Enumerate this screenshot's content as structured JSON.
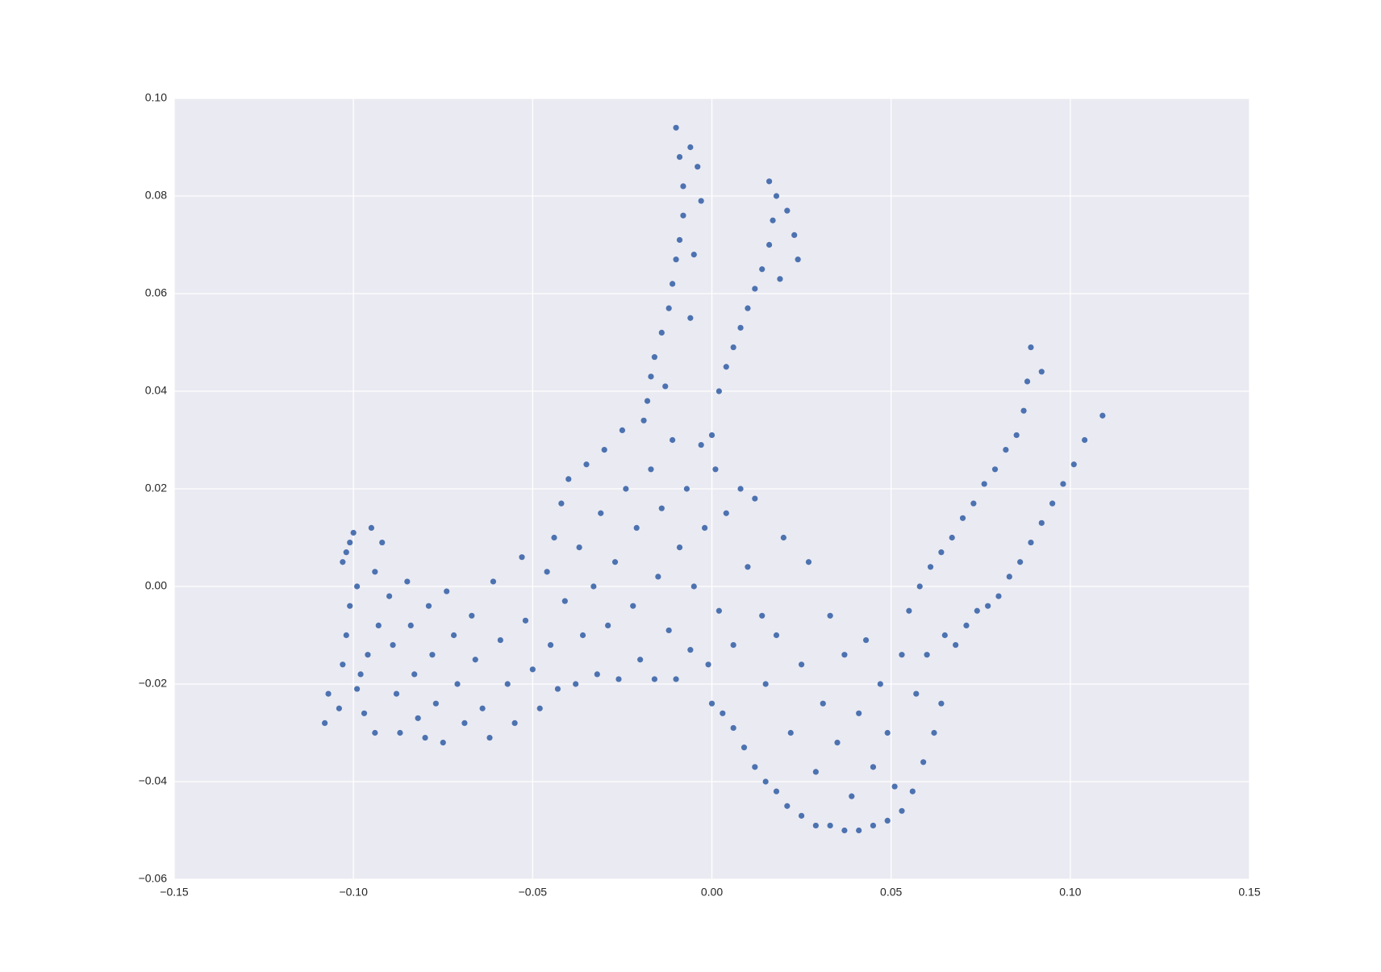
{
  "chart_data": {
    "type": "scatter",
    "color": "#4c72b0",
    "grid": true,
    "xlim": [
      -0.15,
      0.15
    ],
    "ylim": [
      -0.06,
      0.1
    ],
    "xticks": [
      {
        "value": -0.15,
        "label": "−0.15"
      },
      {
        "value": -0.1,
        "label": "−0.10"
      },
      {
        "value": -0.05,
        "label": "−0.05"
      },
      {
        "value": 0,
        "label": "0.00"
      },
      {
        "value": 0.05,
        "label": "0.05"
      },
      {
        "value": 0.1,
        "label": "0.10"
      },
      {
        "value": 0.15,
        "label": "0.15"
      }
    ],
    "yticks": [
      {
        "value": -0.06,
        "label": "−0.06"
      },
      {
        "value": -0.04,
        "label": "−0.04"
      },
      {
        "value": -0.02,
        "label": "−0.02"
      },
      {
        "value": 0,
        "label": "0.00"
      },
      {
        "value": 0.02,
        "label": "0.02"
      },
      {
        "value": 0.04,
        "label": "0.04"
      },
      {
        "value": 0.06,
        "label": "0.06"
      },
      {
        "value": 0.08,
        "label": "0.08"
      },
      {
        "value": 0.1,
        "label": "0.10"
      }
    ],
    "x": [
      -0.108,
      -0.107,
      -0.104,
      -0.103,
      -0.102,
      -0.103,
      -0.101,
      -0.1,
      -0.099,
      -0.101,
      -0.098,
      -0.097,
      -0.095,
      -0.094,
      -0.093,
      -0.092,
      -0.096,
      -0.099,
      -0.102,
      -0.094,
      -0.09,
      -0.089,
      -0.088,
      -0.087,
      -0.085,
      -0.084,
      -0.083,
      -0.082,
      -0.08,
      -0.079,
      -0.078,
      -0.077,
      -0.075,
      -0.074,
      -0.072,
      -0.071,
      -0.069,
      -0.067,
      -0.066,
      -0.064,
      -0.062,
      -0.061,
      -0.059,
      -0.057,
      -0.055,
      -0.053,
      -0.052,
      -0.05,
      -0.048,
      -0.046,
      -0.045,
      -0.044,
      -0.043,
      -0.042,
      -0.041,
      -0.04,
      -0.038,
      -0.037,
      -0.036,
      -0.035,
      -0.033,
      -0.032,
      -0.031,
      -0.03,
      -0.029,
      -0.027,
      -0.026,
      -0.025,
      -0.024,
      -0.022,
      -0.021,
      -0.02,
      -0.019,
      -0.017,
      -0.016,
      -0.015,
      -0.014,
      -0.012,
      -0.011,
      -0.01,
      -0.009,
      -0.007,
      -0.006,
      -0.005,
      -0.003,
      -0.002,
      -0.001,
      0.001,
      0.002,
      0.004,
      0.006,
      0.008,
      0.01,
      0.012,
      0.014,
      -0.018,
      -0.017,
      -0.016,
      -0.014,
      -0.013,
      -0.012,
      -0.011,
      -0.01,
      -0.009,
      -0.008,
      -0.008,
      -0.009,
      -0.01,
      -0.006,
      -0.004,
      -0.003,
      -0.005,
      -0.006,
      0,
      0.002,
      0.004,
      0.006,
      0.008,
      0.01,
      0.012,
      0.014,
      0.016,
      0.017,
      0.016,
      0.018,
      0.021,
      0.023,
      0.024,
      0.019,
      0,
      0.003,
      0.006,
      0.009,
      0.012,
      0.015,
      0.018,
      0.021,
      0.025,
      0.029,
      0.033,
      0.037,
      0.041,
      0.045,
      0.049,
      0.053,
      0.056,
      0.059,
      0.062,
      0.064,
      0.015,
      0.018,
      0.02,
      0.022,
      0.025,
      0.027,
      0.029,
      0.031,
      0.033,
      0.035,
      0.037,
      0.039,
      0.041,
      0.043,
      0.045,
      0.047,
      0.049,
      0.051,
      0.053,
      0.057,
      0.055,
      0.058,
      0.061,
      0.064,
      0.067,
      0.07,
      0.073,
      0.076,
      0.079,
      0.082,
      0.085,
      0.087,
      0.088,
      0.089,
      0.092,
      0.06,
      0.065,
      0.068,
      0.071,
      0.074,
      0.077,
      0.08,
      0.083,
      0.086,
      0.089,
      0.092,
      0.095,
      0.098,
      0.101,
      0.104,
      0.109
    ],
    "y": [
      -0.028,
      -0.022,
      -0.025,
      -0.016,
      -0.01,
      0.005,
      0.009,
      0.011,
      0,
      -0.004,
      -0.018,
      -0.026,
      0.012,
      0.003,
      -0.008,
      0.009,
      -0.014,
      -0.021,
      0.007,
      -0.03,
      -0.002,
      -0.012,
      -0.022,
      -0.03,
      0.001,
      -0.008,
      -0.018,
      -0.027,
      -0.031,
      -0.004,
      -0.014,
      -0.024,
      -0.032,
      -0.001,
      -0.01,
      -0.02,
      -0.028,
      -0.006,
      -0.015,
      -0.025,
      -0.031,
      0.001,
      -0.011,
      -0.02,
      -0.028,
      0.006,
      -0.007,
      -0.017,
      -0.025,
      0.003,
      -0.012,
      0.01,
      -0.021,
      0.017,
      -0.003,
      0.022,
      -0.02,
      0.008,
      -0.01,
      0.025,
      0,
      -0.018,
      0.015,
      0.028,
      -0.008,
      0.005,
      -0.019,
      0.032,
      0.02,
      -0.004,
      0.012,
      -0.015,
      0.034,
      0.024,
      -0.019,
      0.002,
      0.016,
      -0.009,
      0.03,
      -0.019,
      0.008,
      0.02,
      -0.013,
      0,
      0.029,
      0.012,
      -0.016,
      0.024,
      -0.005,
      0.015,
      -0.012,
      0.02,
      0.004,
      0.018,
      -0.006,
      0.038,
      0.043,
      0.047,
      0.052,
      0.041,
      0.057,
      0.062,
      0.067,
      0.071,
      0.076,
      0.082,
      0.088,
      0.094,
      0.09,
      0.086,
      0.079,
      0.068,
      0.055,
      0.031,
      0.04,
      0.045,
      0.049,
      0.053,
      0.057,
      0.061,
      0.065,
      0.07,
      0.075,
      0.083,
      0.08,
      0.077,
      0.072,
      0.067,
      0.063,
      -0.024,
      -0.026,
      -0.029,
      -0.033,
      -0.037,
      -0.04,
      -0.042,
      -0.045,
      -0.047,
      -0.049,
      -0.049,
      -0.05,
      -0.05,
      -0.049,
      -0.048,
      -0.046,
      -0.042,
      -0.036,
      -0.03,
      -0.024,
      -0.02,
      -0.01,
      0.01,
      -0.03,
      -0.016,
      0.005,
      -0.038,
      -0.024,
      -0.006,
      -0.032,
      -0.014,
      -0.043,
      -0.026,
      -0.011,
      -0.037,
      -0.02,
      -0.03,
      -0.041,
      -0.014,
      -0.022,
      -0.005,
      0,
      0.004,
      0.007,
      0.01,
      0.014,
      0.017,
      0.021,
      0.024,
      0.028,
      0.031,
      0.036,
      0.042,
      0.049,
      0.044,
      -0.014,
      -0.01,
      -0.012,
      -0.008,
      -0.005,
      -0.004,
      -0.002,
      0.002,
      0.005,
      0.009,
      0.013,
      0.017,
      0.021,
      0.025,
      0.03,
      0.035
    ]
  }
}
